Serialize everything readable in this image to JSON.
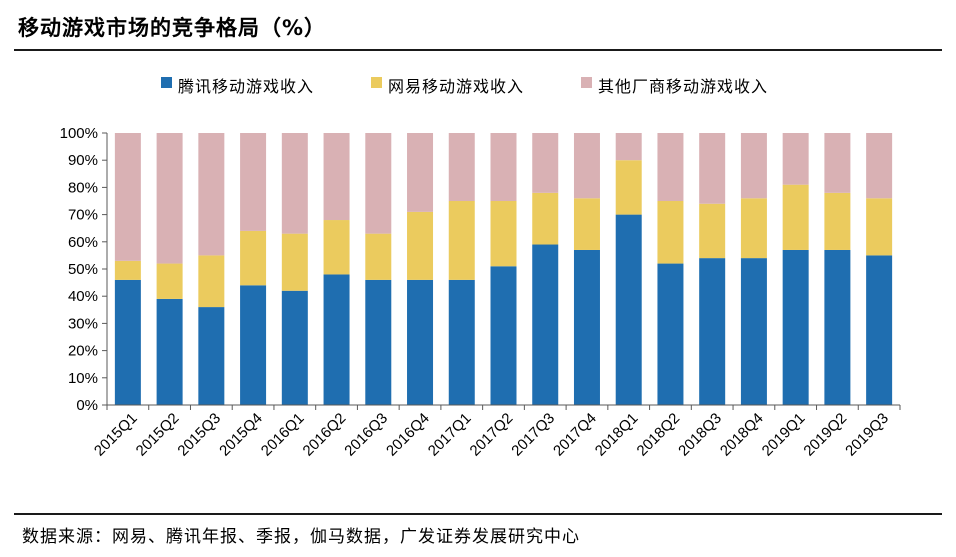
{
  "header": {
    "title": "移动游戏市场的竞争格局（%）"
  },
  "footer": {
    "source": "数据来源：网易、腾讯年报、季报，伽马数据，广发证券发展研究中心"
  },
  "colors": {
    "tencent": "#1F6EB0",
    "netease": "#EBCB5E",
    "others": "#D9B1B4",
    "axis": "#595959"
  },
  "chart_data": {
    "type": "bar",
    "stacked": true,
    "percent_stacked": true,
    "title": "移动游戏市场的竞争格局（%）",
    "xlabel": "",
    "ylabel": "",
    "ylim": [
      0,
      100
    ],
    "y_ticks": [
      "0%",
      "10%",
      "20%",
      "30%",
      "40%",
      "50%",
      "60%",
      "70%",
      "80%",
      "90%",
      "100%"
    ],
    "grid": false,
    "legend_position": "top",
    "categories": [
      "2015Q1",
      "2015Q2",
      "2015Q3",
      "2015Q4",
      "2016Q1",
      "2016Q2",
      "2016Q3",
      "2016Q4",
      "2017Q1",
      "2017Q2",
      "2017Q3",
      "2017Q4",
      "2018Q1",
      "2018Q2",
      "2018Q3",
      "2018Q4",
      "2019Q1",
      "2019Q2",
      "2019Q3"
    ],
    "series": [
      {
        "name": "腾讯移动游戏收入",
        "color": "#1F6EB0",
        "values": [
          46,
          39,
          36,
          44,
          42,
          48,
          46,
          46,
          46,
          51,
          59,
          57,
          70,
          52,
          54,
          54,
          57,
          57,
          55
        ]
      },
      {
        "name": "网易移动游戏收入",
        "color": "#EBCB5E",
        "values": [
          7,
          13,
          19,
          20,
          21,
          20,
          17,
          25,
          29,
          24,
          19,
          19,
          20,
          23,
          20,
          22,
          24,
          21,
          21
        ]
      },
      {
        "name": "其他厂商移动游戏收入",
        "color": "#D9B1B4",
        "values": [
          47,
          48,
          45,
          36,
          37,
          32,
          37,
          29,
          25,
          25,
          22,
          24,
          10,
          25,
          26,
          24,
          19,
          22,
          24
        ]
      }
    ]
  }
}
